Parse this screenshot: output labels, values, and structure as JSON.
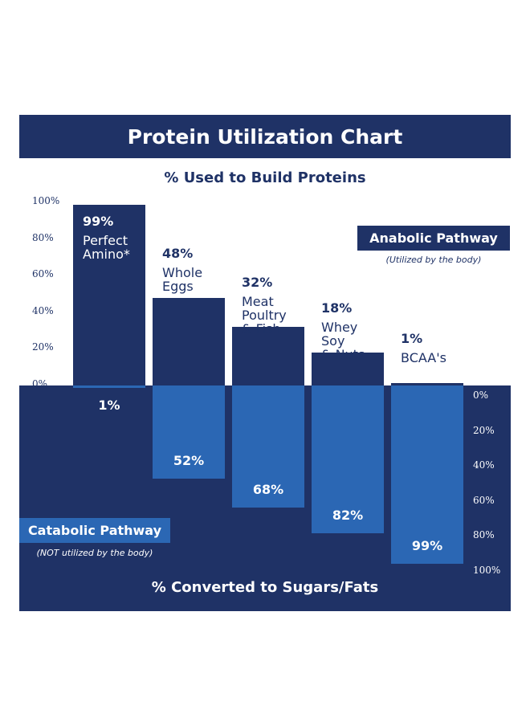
{
  "chart_data": {
    "type": "bar",
    "title": "Protein Utilization Chart",
    "top_axis_title": "% Used to Build Proteins",
    "bottom_axis_title": "% Converted to Sugars/Fats",
    "left_ticks": [
      "100%",
      "80%",
      "60%",
      "40%",
      "20%",
      "0%"
    ],
    "right_ticks": [
      "0%",
      "20%",
      "40%",
      "60%",
      "80%",
      "100%"
    ],
    "ylim": [
      0,
      100
    ],
    "categories": [
      {
        "pct": "99%",
        "name": [
          "Perfect",
          "Amino*"
        ],
        "bottom_pct": "1%"
      },
      {
        "pct": "48%",
        "name": [
          "Whole",
          "Eggs"
        ],
        "bottom_pct": "52%"
      },
      {
        "pct": "32%",
        "name": [
          "Meat",
          "Poultry",
          "& Fish"
        ],
        "bottom_pct": "68%"
      },
      {
        "pct": "18%",
        "name": [
          "Whey",
          "Soy",
          "& Nuts"
        ],
        "bottom_pct": "82%"
      },
      {
        "pct": "1%",
        "name": [
          "BCAA's"
        ],
        "bottom_pct": "99%"
      }
    ],
    "series": [
      {
        "name": "Anabolic Pathway",
        "values": [
          99,
          48,
          32,
          18,
          1
        ]
      },
      {
        "name": "Catabolic Pathway",
        "values": [
          1,
          52,
          68,
          82,
          99
        ]
      }
    ],
    "legend": {
      "anabolic_label": "Anabolic Pathway",
      "anabolic_note": "(Utilized by the body)",
      "catabolic_label": "Catabolic Pathway",
      "catabolic_note": "(NOT utilized by the body)"
    }
  },
  "colors": {
    "navy": "#1f3266",
    "blue": "#2b67b4",
    "white": "#ffffff"
  }
}
